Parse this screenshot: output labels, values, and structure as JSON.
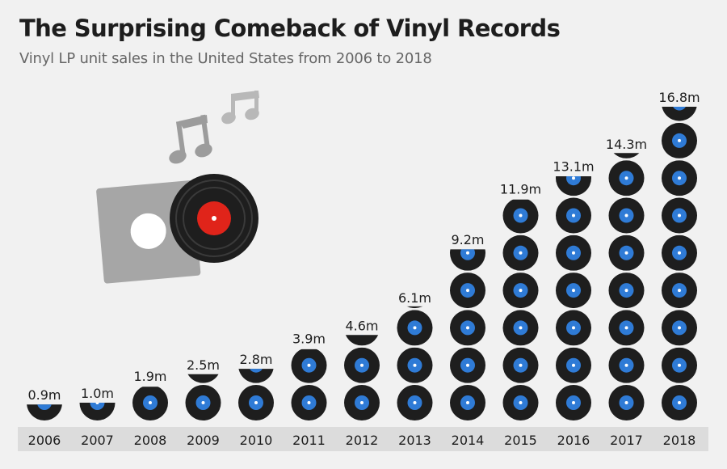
{
  "header": {
    "title": "The Surprising Comeback of Vinyl Records",
    "subtitle": "Vinyl LP unit sales in the United States from 2006 to 2018"
  },
  "colors": {
    "background": "#f1f1f1",
    "record": "#1e1e1e",
    "label_blue": "#2f7bd6",
    "axis_band": "#dcdcdc",
    "illustration_label_red": "#e0241a",
    "sleeve_gray": "#a6a6a6",
    "note_gray": "#9c9c9c"
  },
  "illustration": {
    "description_icons": [
      "record-sleeve-icon",
      "vinyl-record-icon",
      "music-note-icon"
    ]
  },
  "chart_data": {
    "type": "bar",
    "style": "pictogram stacked vinyl records",
    "categories": [
      "2006",
      "2007",
      "2008",
      "2009",
      "2010",
      "2011",
      "2012",
      "2013",
      "2014",
      "2015",
      "2016",
      "2017",
      "2018"
    ],
    "values": [
      0.9,
      1.0,
      1.9,
      2.5,
      2.8,
      3.9,
      4.6,
      6.1,
      9.2,
      11.9,
      13.1,
      14.3,
      16.8
    ],
    "value_labels": [
      "0.9m",
      "1.0m",
      "1.9m",
      "2.5m",
      "2.8m",
      "3.9m",
      "4.6m",
      "6.1m",
      "9.2m",
      "11.9m",
      "13.1m",
      "14.3m",
      "16.8m"
    ],
    "unit_per_record": 2,
    "grid": false,
    "legend": "none"
  }
}
